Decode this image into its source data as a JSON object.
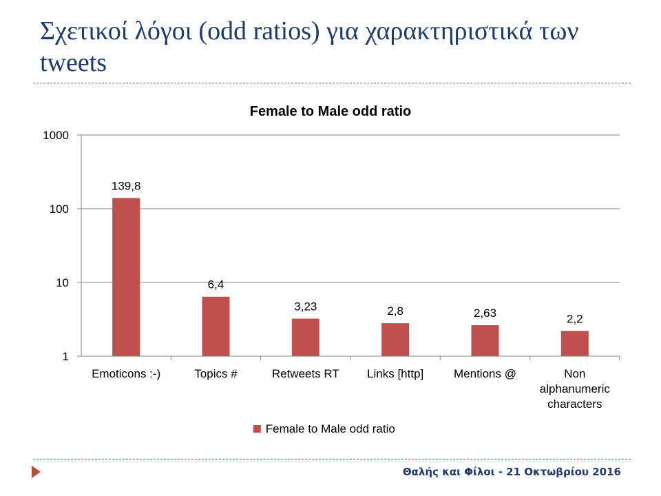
{
  "slide": {
    "title": "Σχετικοί λόγοι (odd ratios) για χαρακτηριστικά των tweets",
    "footer": "Θαλής και Φίλοι - 21 Οκτωβρίου 2016",
    "accent_color": "#b5503a",
    "title_color": "#1f3a6d"
  },
  "chart_data": {
    "type": "bar",
    "title": "Female to Male odd ratio",
    "categories": [
      "Emoticons :-)",
      "Topics #",
      "Retweets RT",
      "Links [http]",
      "Mentions @",
      "Non alphanumeric characters"
    ],
    "category_lines": [
      [
        "Emoticons :-)"
      ],
      [
        "Topics #"
      ],
      [
        "Retweets RT"
      ],
      [
        "Links [http]"
      ],
      [
        "Mentions @"
      ],
      [
        "Non",
        "alphanumeric",
        "characters"
      ]
    ],
    "series": [
      {
        "name": "Female to Male odd ratio",
        "values": [
          139.8,
          6.4,
          3.23,
          2.8,
          2.63,
          2.2
        ],
        "labels": [
          "139,8",
          "6,4",
          "3,23",
          "2,8",
          "2,63",
          "2,2"
        ],
        "color": "#c0504d"
      }
    ],
    "y_scale": "log",
    "ylim": [
      1,
      1000
    ],
    "y_ticks": [
      1,
      10,
      100,
      1000
    ],
    "y_tick_labels": [
      "1",
      "10",
      "100",
      "1000"
    ],
    "grid": true,
    "legend_position": "bottom"
  }
}
